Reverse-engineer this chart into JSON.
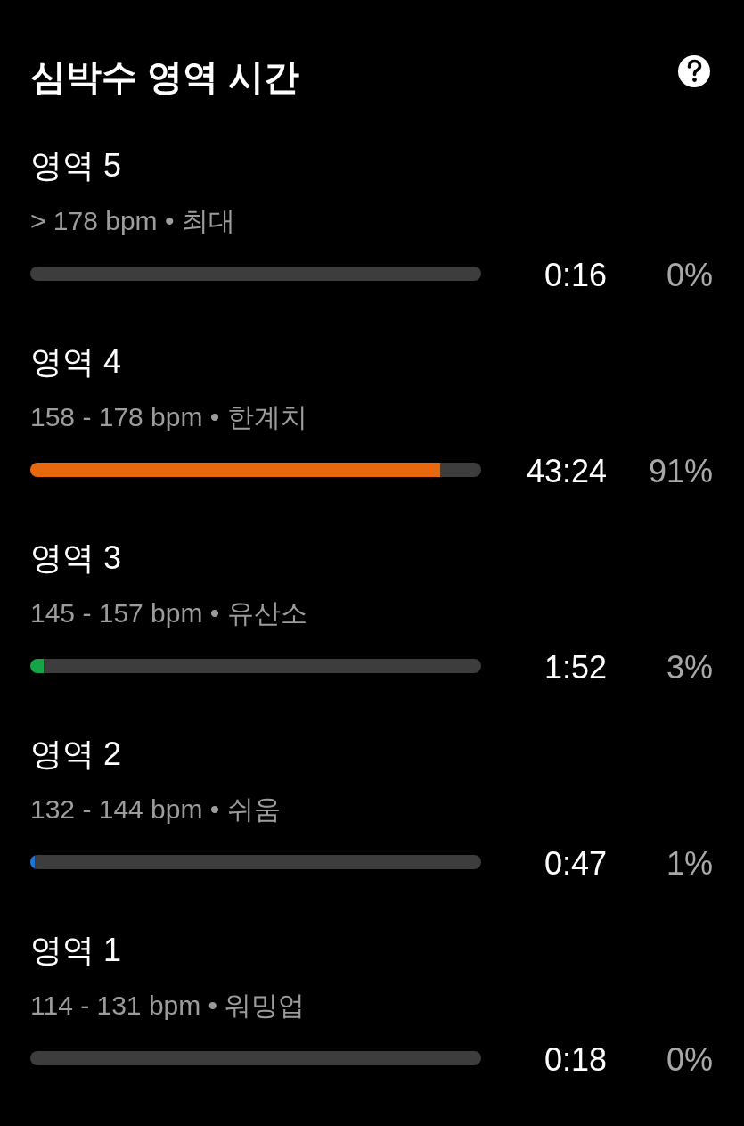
{
  "chart_data": {
    "type": "bar",
    "orientation": "horizontal",
    "stacked": true,
    "title": "심박수 영역 시간",
    "categories": [
      "영역 5\n> 178 bpm • 최대",
      "영역 4\n158 - 178 bpm • 한계치",
      "영역 3\n145 - 157 bpm • 유산소",
      "영역 2\n132 - 144 bpm • 쉬움",
      "영역 1\n114 - 131 bpm • 워밍업"
    ],
    "series": [
      {
        "colors": [
          null,
          "#e8680f",
          "#16a447",
          "#1f74d0",
          null
        ],
        "values": [
          0,
          91,
          3,
          1,
          0
        ],
        "value_labels": [
          "0%",
          "91%",
          "3%",
          "1%",
          "0%"
        ]
      },
      {
        "color": "#3d3d3d",
        "values": [
          100,
          9,
          97,
          99,
          100
        ]
      }
    ],
    "xlim": [
      0,
      100
    ],
    "annotations": [
      "0:16",
      "43:24",
      "1:52",
      "0:47",
      "0:18"
    ]
  }
}
